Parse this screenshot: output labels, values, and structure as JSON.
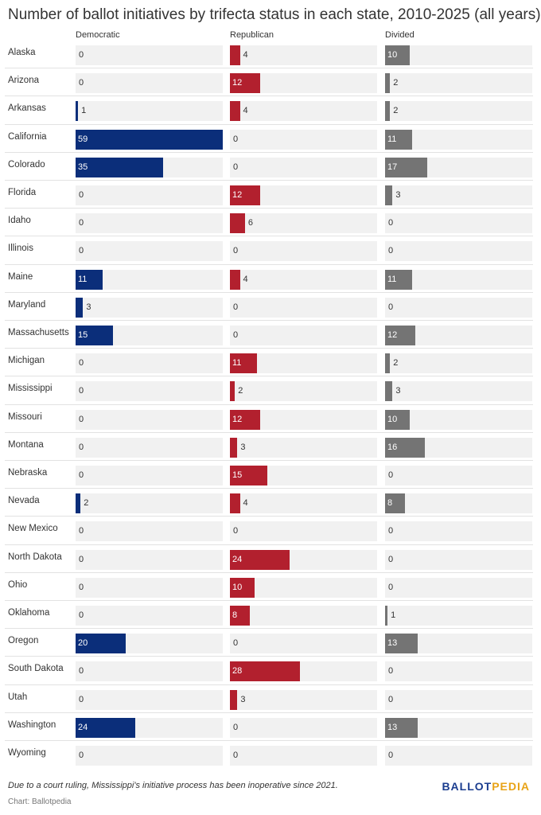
{
  "chart_data": {
    "type": "bar",
    "title": "Number of ballot initiatives by trifecta status in each state, 2010-2025 (all years)",
    "categories": [
      "Alaska",
      "Arizona",
      "Arkansas",
      "California",
      "Colorado",
      "Florida",
      "Idaho",
      "Illinois",
      "Maine",
      "Maryland",
      "Massachusetts",
      "Michigan",
      "Mississippi",
      "Missouri",
      "Montana",
      "Nebraska",
      "Nevada",
      "New Mexico",
      "North Dakota",
      "Ohio",
      "Oklahoma",
      "Oregon",
      "South Dakota",
      "Utah",
      "Washington",
      "Wyoming"
    ],
    "series": [
      {
        "name": "Democratic",
        "color": "#0b2e7a",
        "values": [
          0,
          0,
          1,
          59,
          35,
          0,
          0,
          0,
          11,
          3,
          15,
          0,
          0,
          0,
          0,
          0,
          2,
          0,
          0,
          0,
          0,
          20,
          0,
          0,
          24,
          0
        ]
      },
      {
        "name": "Republican",
        "color": "#b2202e",
        "values": [
          4,
          12,
          4,
          0,
          0,
          12,
          6,
          0,
          4,
          0,
          0,
          11,
          2,
          12,
          3,
          15,
          4,
          0,
          24,
          10,
          8,
          0,
          28,
          3,
          0,
          0
        ]
      },
      {
        "name": "Divided",
        "color": "#747474",
        "values": [
          10,
          2,
          2,
          11,
          17,
          3,
          0,
          0,
          11,
          0,
          12,
          2,
          3,
          10,
          16,
          0,
          8,
          0,
          0,
          0,
          1,
          13,
          0,
          0,
          13,
          0
        ]
      }
    ],
    "xlim": [
      0,
      59
    ],
    "legend": "column headers",
    "grid": false
  },
  "footnote": "Due to a court ruling, Mississippi's initiative process has been inoperative since 2021.",
  "credit": "Chart: Ballotpedia",
  "logo": {
    "part1": "BALLOT",
    "part2": "PEDIA"
  }
}
